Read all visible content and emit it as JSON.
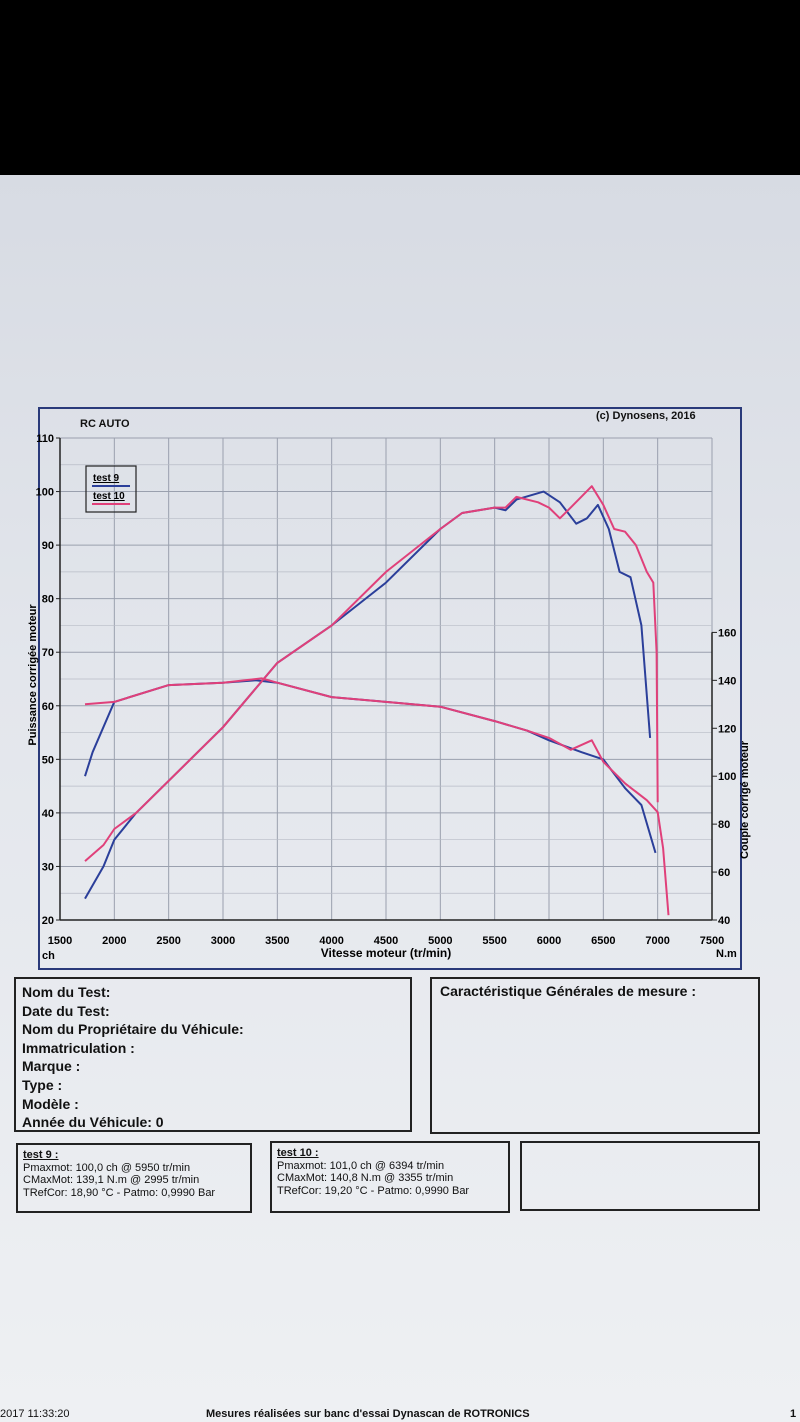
{
  "header": {
    "left": "RC AUTO",
    "right": "(c) Dynosens, 2016"
  },
  "chart_data": {
    "type": "line",
    "xlabel": "Vitesse moteur (tr/min)",
    "x_unit_left": "ch",
    "x_unit_right": "N.m",
    "ylabel_left": "Puissance corrigée moteur",
    "ylabel_right": "Couple corrigé moteur",
    "xlim": [
      1500,
      7500
    ],
    "ylim_left": [
      20,
      110
    ],
    "ylim_right": [
      40,
      160
    ],
    "x_ticks": [
      "1500",
      "2000",
      "2500",
      "3000",
      "3500",
      "4000",
      "4500",
      "5000",
      "5500",
      "6000",
      "6500",
      "7000",
      "7500"
    ],
    "y_left_ticks": [
      "20",
      "30",
      "40",
      "50",
      "60",
      "70",
      "80",
      "90",
      "100",
      "110"
    ],
    "y_right_ticks": [
      "40",
      "60",
      "80",
      "100",
      "120",
      "140",
      "160"
    ],
    "grid": true,
    "legend_position": "top-left",
    "series": [
      {
        "name": "test 9",
        "color": "#2b3f9a",
        "power": [
          [
            1730,
            24
          ],
          [
            1900,
            30
          ],
          [
            2000,
            35
          ],
          [
            2200,
            40
          ],
          [
            2500,
            46
          ],
          [
            3000,
            56
          ],
          [
            3500,
            68
          ],
          [
            4000,
            75
          ],
          [
            4500,
            83
          ],
          [
            5000,
            93
          ],
          [
            5200,
            96
          ],
          [
            5500,
            97
          ],
          [
            5600,
            96.5
          ],
          [
            5700,
            98.5
          ],
          [
            5950,
            100
          ],
          [
            6100,
            98
          ],
          [
            6250,
            94
          ],
          [
            6350,
            95
          ],
          [
            6450,
            97.5
          ],
          [
            6550,
            93
          ],
          [
            6650,
            85
          ],
          [
            6750,
            84
          ],
          [
            6850,
            75
          ],
          [
            6930,
            54
          ]
        ],
        "torque": [
          [
            1730,
            100
          ],
          [
            1800,
            110
          ],
          [
            2000,
            131
          ],
          [
            2500,
            138
          ],
          [
            2995,
            139
          ],
          [
            3300,
            140
          ],
          [
            3500,
            139
          ],
          [
            4000,
            133
          ],
          [
            4500,
            131
          ],
          [
            5000,
            129
          ],
          [
            5500,
            123
          ],
          [
            5800,
            119
          ],
          [
            6000,
            115
          ],
          [
            6300,
            110
          ],
          [
            6500,
            107
          ],
          [
            6700,
            95
          ],
          [
            6850,
            88
          ],
          [
            6980,
            68
          ]
        ]
      },
      {
        "name": "test 10",
        "color": "#e0407a",
        "power": [
          [
            1730,
            31
          ],
          [
            1900,
            34
          ],
          [
            2000,
            37
          ],
          [
            2200,
            40
          ],
          [
            2500,
            46
          ],
          [
            3000,
            56
          ],
          [
            3500,
            68
          ],
          [
            4000,
            75
          ],
          [
            4500,
            85
          ],
          [
            5000,
            93
          ],
          [
            5200,
            96
          ],
          [
            5500,
            97
          ],
          [
            5600,
            97
          ],
          [
            5700,
            99
          ],
          [
            5900,
            98
          ],
          [
            6000,
            97
          ],
          [
            6100,
            95
          ],
          [
            6200,
            97
          ],
          [
            6394,
            101
          ],
          [
            6500,
            97.5
          ],
          [
            6600,
            93
          ],
          [
            6700,
            92.5
          ],
          [
            6800,
            90
          ],
          [
            6900,
            85
          ],
          [
            6960,
            83
          ],
          [
            6990,
            70
          ],
          [
            7000,
            42
          ]
        ],
        "torque": [
          [
            1730,
            130
          ],
          [
            2000,
            131
          ],
          [
            2500,
            138
          ],
          [
            3000,
            139
          ],
          [
            3355,
            140.8
          ],
          [
            3500,
            139
          ],
          [
            4000,
            133
          ],
          [
            4500,
            131
          ],
          [
            5000,
            129
          ],
          [
            5500,
            123
          ],
          [
            5800,
            119
          ],
          [
            6000,
            116
          ],
          [
            6200,
            111
          ],
          [
            6394,
            115
          ],
          [
            6500,
            106
          ],
          [
            6700,
            97
          ],
          [
            6900,
            90
          ],
          [
            7000,
            85
          ],
          [
            7050,
            70
          ],
          [
            7100,
            42
          ]
        ]
      }
    ]
  },
  "info_box": {
    "lines": [
      "Nom du Test:",
      "Date du Test:",
      "Nom du Propriétaire du Véhicule:",
      "Immatriculation  :",
      "Marque  :",
      "Type  :",
      "Modèle  :",
      "Année du Véhicule: 0"
    ]
  },
  "general_box": {
    "title": "Caractéristique Générales de mesure :"
  },
  "results": [
    {
      "title": "test 9 :",
      "pmax": "Pmaxmot: 100,0 ch @ 5950 tr/min",
      "cmax": "CMaxMot: 139,1 N.m @ 2995 tr/min",
      "tref": "TRefCor: 18,90 °C - Patmo: 0,9990 Bar"
    },
    {
      "title": "test 10 :",
      "pmax": "Pmaxmot: 101,0 ch @ 6394 tr/min",
      "cmax": "CMaxMot: 140,8 N.m @ 3355 tr/min",
      "tref": "TRefCor: 19,20 °C - Patmo: 0,9990 Bar"
    }
  ],
  "footer": {
    "datetime": "2017 11:33:20",
    "center": "Mesures réalisées sur banc d'essai Dynascan de ROTRONICS",
    "page": "1"
  }
}
